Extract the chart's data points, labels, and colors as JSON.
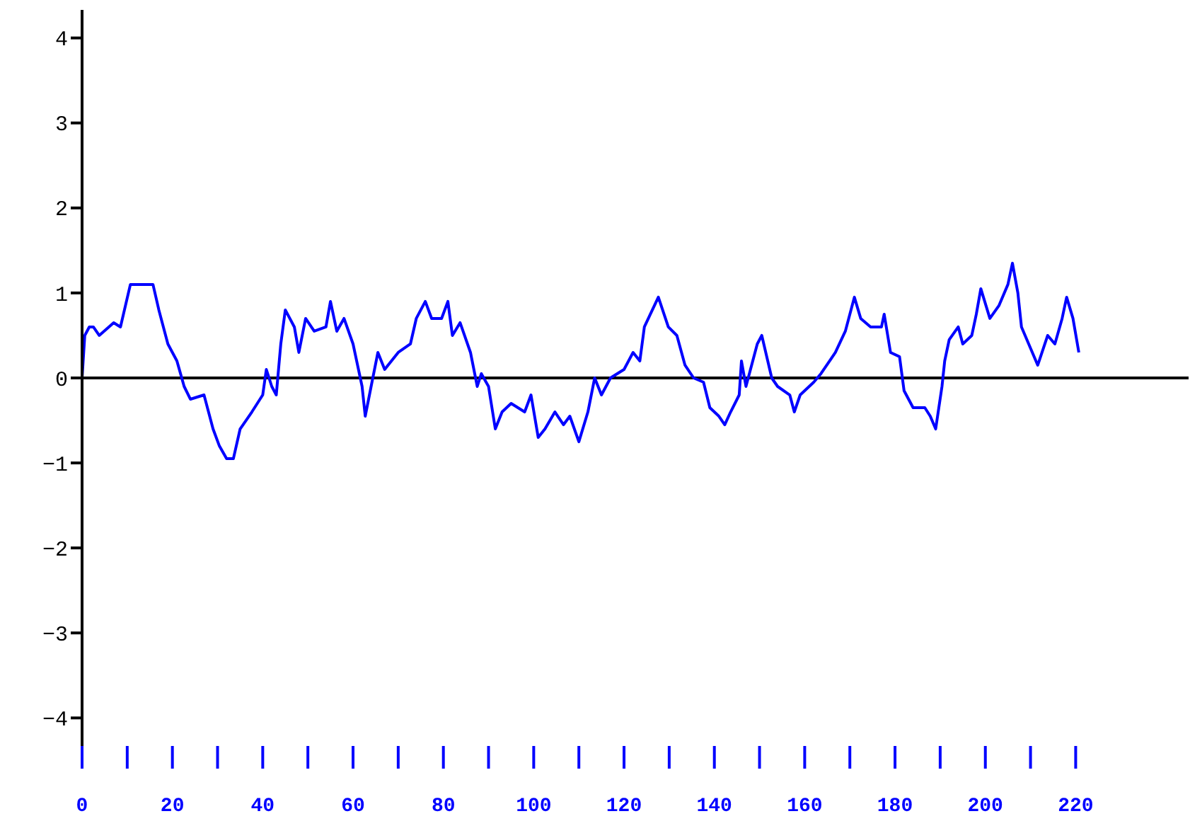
{
  "chart_data": {
    "type": "line",
    "x": [
      0,
      0.6,
      1.6,
      2.5,
      3.8,
      7,
      8.5,
      10.7,
      15.7,
      17,
      19,
      21,
      22.6,
      24,
      27,
      29,
      30.4,
      32,
      33.5,
      35,
      37.6,
      40,
      40.8,
      42,
      43,
      44,
      45,
      47,
      48,
      49.5,
      51.4,
      54,
      55,
      56.4,
      58,
      60,
      62,
      62.7,
      64,
      65.5,
      67,
      70,
      72.7,
      74,
      76,
      77.4,
      79.6,
      81,
      82,
      83.7,
      86,
      87.5,
      88.4,
      90,
      91.5,
      93,
      95,
      98,
      99.4,
      101,
      102.5,
      104.7,
      106.6,
      108,
      110,
      112,
      113.5,
      115,
      117,
      120,
      122,
      123.5,
      124.5,
      127.6,
      129.8,
      131.7,
      133.5,
      135.4,
      137.6,
      139,
      141,
      142.3,
      143.6,
      145.5,
      146,
      147,
      149.5,
      150.5,
      152.7,
      154,
      156.7,
      157.7,
      159,
      162,
      163.6,
      166.8,
      169,
      171,
      172.4,
      174.6,
      177,
      177.6,
      179,
      181,
      182,
      184,
      186.6,
      187.8,
      189,
      190.4,
      191,
      192,
      194,
      195,
      197,
      198,
      199,
      201,
      203,
      205,
      206,
      207.2,
      208,
      210,
      211.6,
      213.8,
      215.4,
      217,
      218,
      219.4,
      220.7
    ],
    "series": [
      {
        "color": "#0000ff",
        "values": [
          0,
          0.5,
          0.6,
          0.6,
          0.5,
          0.65,
          0.6,
          1.1,
          1.1,
          0.8,
          0.4,
          0.2,
          -0.1,
          -0.25,
          -0.2,
          -0.6,
          -0.8,
          -0.95,
          -0.95,
          -0.6,
          -0.4,
          -0.2,
          0.1,
          -0.1,
          -0.2,
          0.4,
          0.8,
          0.6,
          0.3,
          0.7,
          0.55,
          0.6,
          0.9,
          0.55,
          0.7,
          0.4,
          -0.1,
          -0.45,
          -0.1,
          0.3,
          0.1,
          0.3,
          0.4,
          0.7,
          0.9,
          0.7,
          0.7,
          0.9,
          0.5,
          0.65,
          0.3,
          -0.1,
          0.05,
          -0.1,
          -0.6,
          -0.4,
          -0.3,
          -0.4,
          -0.2,
          -0.7,
          -0.6,
          -0.4,
          -0.55,
          -0.45,
          -0.75,
          -0.4,
          0,
          -0.2,
          0,
          0.1,
          0.3,
          0.2,
          0.6,
          0.95,
          0.6,
          0.5,
          0.15,
          0,
          -0.05,
          -0.35,
          -0.45,
          -0.55,
          -0.4,
          -0.2,
          0.2,
          -0.1,
          0.4,
          0.5,
          0,
          -0.1,
          -0.2,
          -0.4,
          -0.2,
          -0.05,
          0.05,
          0.3,
          0.55,
          0.95,
          0.7,
          0.6,
          0.6,
          0.75,
          0.3,
          0.25,
          -0.15,
          -0.35,
          -0.35,
          -0.45,
          -0.6,
          -0.1,
          0.2,
          0.45,
          0.6,
          0.4,
          0.5,
          0.75,
          1.05,
          0.7,
          0.85,
          1.1,
          1.35,
          1,
          0.6,
          0.35,
          0.15,
          0.5,
          0.4,
          0.7,
          0.95,
          0.7,
          0.3
        ]
      }
    ],
    "xlim": [
      0,
      245
    ],
    "xticks": [
      0,
      {
        "value": 10,
        "label": null
      },
      20,
      {
        "value": 30,
        "label": null
      },
      40,
      {
        "value": 50,
        "label": null
      },
      60,
      {
        "value": 70,
        "label": null
      },
      80,
      {
        "value": 90,
        "label": null
      },
      100,
      {
        "value": 110,
        "label": null
      },
      120,
      {
        "value": 130,
        "label": null
      },
      140,
      {
        "value": 150,
        "label": null
      },
      160,
      {
        "value": 170,
        "label": null
      },
      180,
      {
        "value": 190,
        "label": null
      },
      200,
      {
        "value": 210,
        "label": null
      },
      220
    ],
    "ylim": [
      -4.33,
      4.33
    ],
    "yticks": [
      -4,
      -3,
      -2,
      -1,
      0,
      1,
      2,
      3,
      4
    ],
    "ref_lines": [
      {
        "axis": "y",
        "value": 0,
        "color": "#000000"
      }
    ],
    "grid": false,
    "legend": false,
    "marker": "none",
    "line_style": "solid"
  }
}
